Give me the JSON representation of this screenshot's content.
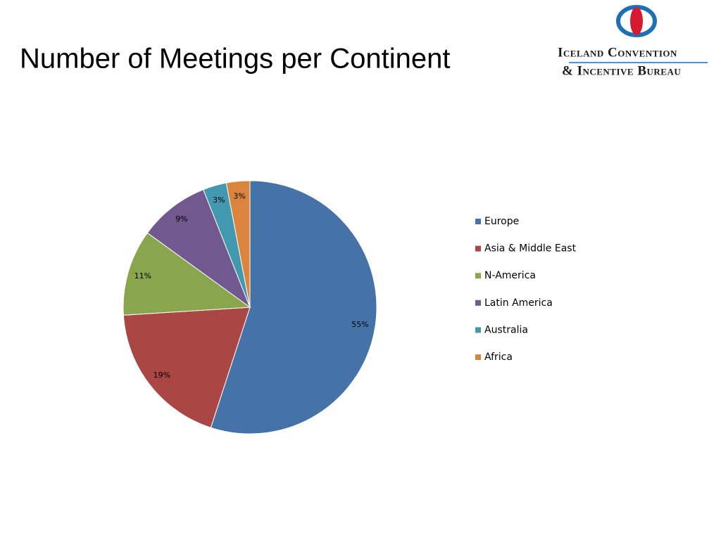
{
  "chart_data": {
    "type": "pie",
    "title": "Number of Meetings per Continent",
    "categories": [
      "Europe",
      "Asia & Middle East",
      "N-America",
      "Latin America",
      "Australia",
      "Africa"
    ],
    "values": [
      55,
      19,
      11,
      9,
      3,
      3
    ],
    "value_labels": [
      "55%",
      "19%",
      "11%",
      "9%",
      "3%",
      "3%"
    ],
    "colors": [
      "#4572a7",
      "#aa4643",
      "#89a54e",
      "#71588f",
      "#4198af",
      "#db843d"
    ],
    "legend": "right"
  },
  "logo": {
    "line1": "Iceland Convention",
    "line2": "& Incentive Bureau"
  }
}
